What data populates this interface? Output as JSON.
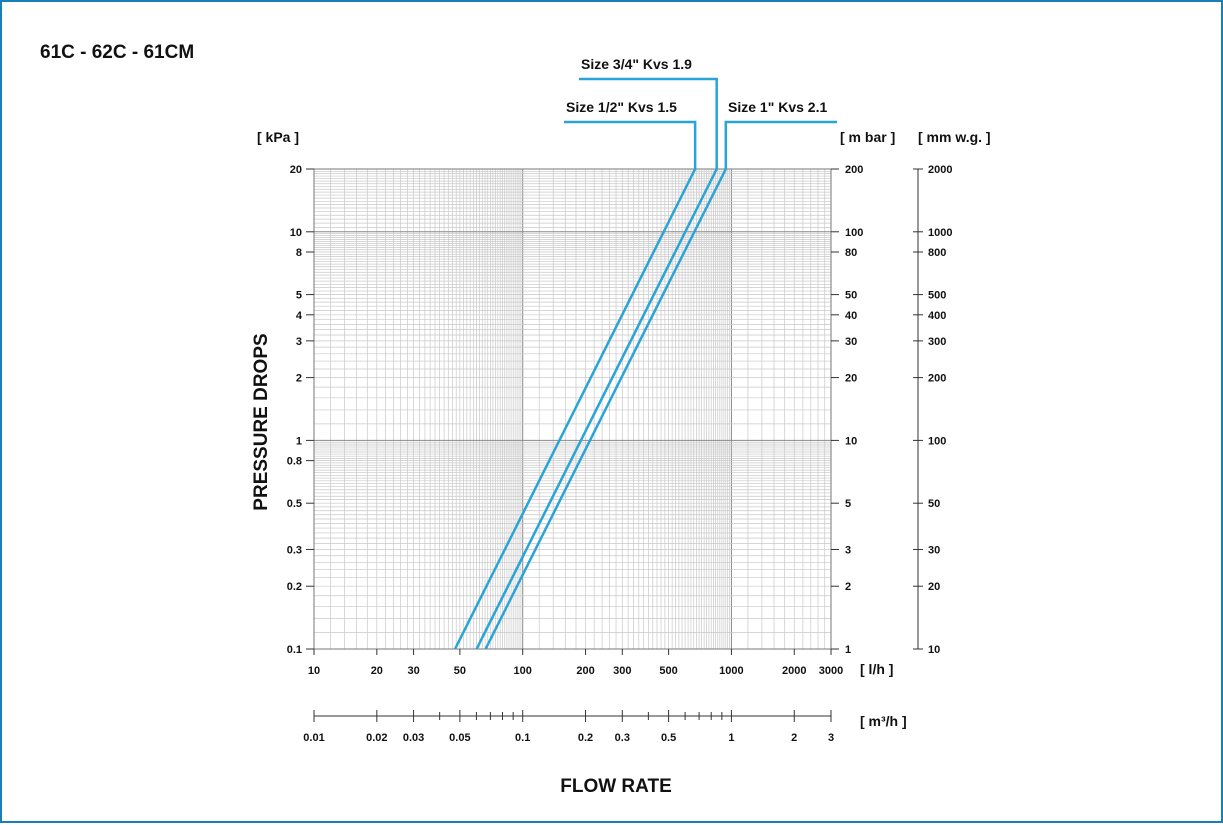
{
  "chart_data": {
    "type": "line",
    "title": "61C - 62C - 61CM",
    "xlabel": "FLOW RATE",
    "ylabel": "PRESSURE DROPS",
    "x_scale": "log",
    "y_scale": "log",
    "xlim": [
      10,
      3000
    ],
    "ylim": [
      0.1,
      20
    ],
    "grid": true,
    "x_unit": "[ l/h ]",
    "x_ticks": [
      {
        "value": 10,
        "label": "10"
      },
      {
        "value": 20,
        "label": "20"
      },
      {
        "value": 30,
        "label": "30"
      },
      {
        "value": 50,
        "label": "50"
      },
      {
        "value": 100,
        "label": "100"
      },
      {
        "value": 200,
        "label": "200"
      },
      {
        "value": 300,
        "label": "300"
      },
      {
        "value": 500,
        "label": "500"
      },
      {
        "value": 1000,
        "label": "1000"
      },
      {
        "value": 2000,
        "label": "2000"
      },
      {
        "value": 3000,
        "label": "3000"
      }
    ],
    "x2_unit": "[ m³/h ]",
    "x2_ticks": [
      {
        "value": 0.01,
        "label": "0.01"
      },
      {
        "value": 0.02,
        "label": "0.02"
      },
      {
        "value": 0.03,
        "label": "0.03"
      },
      {
        "value": 0.05,
        "label": "0.05"
      },
      {
        "value": 0.1,
        "label": "0.1"
      },
      {
        "value": 0.2,
        "label": "0.2"
      },
      {
        "value": 0.3,
        "label": "0.3"
      },
      {
        "value": 0.5,
        "label": "0.5"
      },
      {
        "value": 1,
        "label": "1"
      },
      {
        "value": 2,
        "label": "2"
      },
      {
        "value": 3,
        "label": "3"
      }
    ],
    "y_unit": "[ kPa ]",
    "y_ticks": [
      {
        "value": 0.1,
        "label": "0.1"
      },
      {
        "value": 0.2,
        "label": "0.2"
      },
      {
        "value": 0.3,
        "label": "0.3"
      },
      {
        "value": 0.5,
        "label": "0.5"
      },
      {
        "value": 0.8,
        "label": "0.8"
      },
      {
        "value": 1,
        "label": "1"
      },
      {
        "value": 2,
        "label": "2"
      },
      {
        "value": 3,
        "label": "3"
      },
      {
        "value": 4,
        "label": "4"
      },
      {
        "value": 5,
        "label": "5"
      },
      {
        "value": 8,
        "label": "8"
      },
      {
        "value": 10,
        "label": "10"
      },
      {
        "value": 20,
        "label": "20"
      }
    ],
    "y2_unit": "[ m bar ]",
    "y2_ticks": [
      {
        "value": 1,
        "label": "1"
      },
      {
        "value": 2,
        "label": "2"
      },
      {
        "value": 3,
        "label": "3"
      },
      {
        "value": 5,
        "label": "5"
      },
      {
        "value": 10,
        "label": "10"
      },
      {
        "value": 20,
        "label": "20"
      },
      {
        "value": 30,
        "label": "30"
      },
      {
        "value": 40,
        "label": "40"
      },
      {
        "value": 50,
        "label": "50"
      },
      {
        "value": 80,
        "label": "80"
      },
      {
        "value": 100,
        "label": "100"
      },
      {
        "value": 200,
        "label": "200"
      }
    ],
    "y3_unit": "[ mm w.g. ]",
    "y3_ticks": [
      {
        "value": 10,
        "label": "10"
      },
      {
        "value": 20,
        "label": "20"
      },
      {
        "value": 30,
        "label": "30"
      },
      {
        "value": 50,
        "label": "50"
      },
      {
        "value": 100,
        "label": "100"
      },
      {
        "value": 200,
        "label": "200"
      },
      {
        "value": 300,
        "label": "300"
      },
      {
        "value": 400,
        "label": "400"
      },
      {
        "value": 500,
        "label": "500"
      },
      {
        "value": 800,
        "label": "800"
      },
      {
        "value": 1000,
        "label": "1000"
      },
      {
        "value": 2000,
        "label": "2000"
      }
    ],
    "series_color": "#2aa3d8",
    "series": [
      {
        "name": "Size 1/2\" Kvs 1.5",
        "kvs": 1.5,
        "x": [
          47.4,
          670
        ],
        "y": [
          0.1,
          20
        ]
      },
      {
        "name": "Size 3/4\" Kvs 1.9",
        "kvs": 1.9,
        "x": [
          60.1,
          850
        ],
        "y": [
          0.1,
          20
        ]
      },
      {
        "name": "Size 1\" Kvs 2.1",
        "kvs": 2.1,
        "x": [
          66.4,
          940
        ],
        "y": [
          0.1,
          20
        ]
      }
    ]
  }
}
